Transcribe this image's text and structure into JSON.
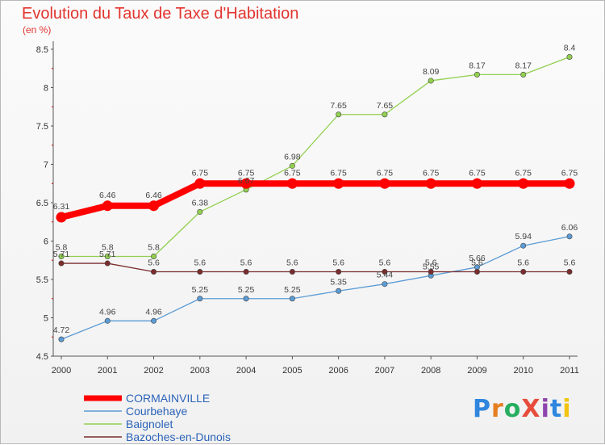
{
  "chart_data": {
    "type": "line",
    "title": "Evolution du Taux de Taxe d'Habitation",
    "subtitle": "(en %)",
    "xlabel": "",
    "ylabel": "",
    "x": [
      "2000",
      "2001",
      "2002",
      "2003",
      "2004",
      "2005",
      "2006",
      "2007",
      "2008",
      "2009",
      "2010",
      "2011"
    ],
    "ylim": [
      4.5,
      8.5
    ],
    "yticks": [
      "4.5",
      "5",
      "5.5",
      "6",
      "6.5",
      "7",
      "7.5",
      "8",
      "8.5"
    ],
    "grid": false,
    "legend_position": "bottom-left",
    "series": [
      {
        "name": "CORMAINVILLE",
        "color": "#ff0000",
        "values": [
          6.31,
          6.46,
          6.46,
          6.75,
          6.75,
          6.75,
          6.75,
          6.75,
          6.75,
          6.75,
          6.75,
          6.75
        ],
        "labels": [
          "6.31",
          "6.46",
          "6.46",
          "6.75",
          "6.75",
          "6.75",
          "6.75",
          "6.75",
          "6.75",
          "6.75",
          "6.75",
          "6.75"
        ]
      },
      {
        "name": "Courbehaye",
        "color": "#5b9bd5",
        "values": [
          4.72,
          4.96,
          4.96,
          5.25,
          5.25,
          5.25,
          5.35,
          5.44,
          5.55,
          5.66,
          5.94,
          6.06
        ],
        "labels": [
          "4.72",
          "4.96",
          "4.96",
          "5.25",
          "5.25",
          "5.25",
          "5.35",
          "5.44",
          "5.55",
          "5.66",
          "5.94",
          "6.06"
        ]
      },
      {
        "name": "Baignolet",
        "color": "#92d050",
        "values": [
          5.8,
          5.8,
          5.8,
          6.38,
          6.67,
          6.98,
          7.65,
          7.65,
          8.09,
          8.17,
          8.17,
          8.4
        ],
        "labels": [
          "5.8",
          "5.8",
          "5.8",
          "6.38",
          "6.67",
          "6.98",
          "7.65",
          "7.65",
          "8.09",
          "8.17",
          "8.17",
          "8.4"
        ]
      },
      {
        "name": "Bazoches-en-Dunois",
        "color": "#7b2c2c",
        "values": [
          5.71,
          5.71,
          5.6,
          5.6,
          5.6,
          5.6,
          5.6,
          5.6,
          5.6,
          5.6,
          5.6,
          5.6
        ],
        "labels": [
          "5.71",
          "5.71",
          "5.6",
          "5.6",
          "5.6",
          "5.6",
          "5.6",
          "5.6",
          "5.6",
          "5.6",
          "5.6",
          "5.6"
        ]
      }
    ]
  },
  "logo": {
    "text": "ProXiti",
    "letter_colors": [
      "#2e86de",
      "#e67e22",
      "#27ae60",
      "#e74c3c",
      "#8e44ad",
      "#2e86de",
      "#f1c40f"
    ]
  }
}
